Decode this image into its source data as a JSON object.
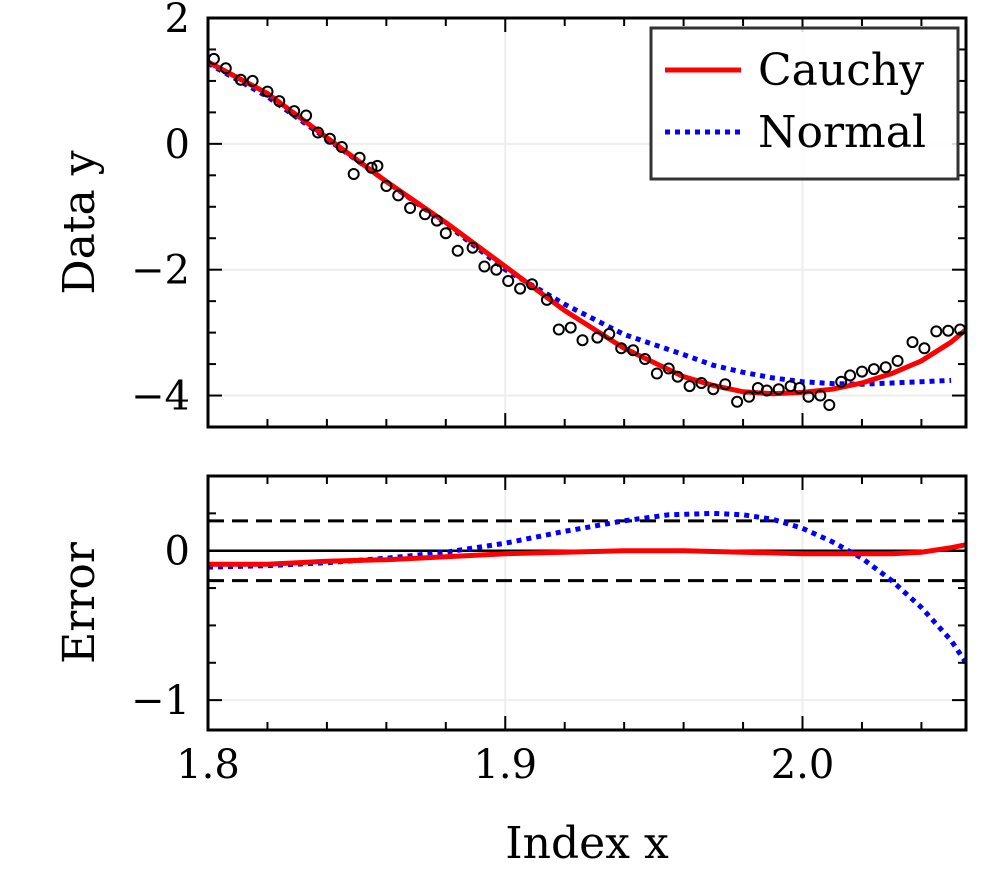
{
  "chart_data": [
    {
      "type": "scatter+line",
      "panel": "top",
      "ylabel": "Data y",
      "xlim": [
        1.8,
        2.055
      ],
      "ylim": [
        -4.5,
        2
      ],
      "yticks": [
        2,
        0,
        -2,
        -4
      ],
      "ytick_labels": [
        "2",
        "0",
        "−2",
        "−4"
      ],
      "grid": true,
      "legend": {
        "position": "top-right",
        "entries": [
          {
            "label": "Cauchy",
            "color": "#ff0000",
            "style": "solid"
          },
          {
            "label": "Normal",
            "color": "#0000ff",
            "style": "dotted"
          }
        ]
      },
      "scatter": {
        "name": "Data",
        "x": [
          1.802,
          1.806,
          1.811,
          1.815,
          1.82,
          1.824,
          1.829,
          1.833,
          1.837,
          1.841,
          1.845,
          1.849,
          1.851,
          1.855,
          1.857,
          1.86,
          1.864,
          1.868,
          1.873,
          1.877,
          1.88,
          1.884,
          1.889,
          1.893,
          1.897,
          1.901,
          1.905,
          1.909,
          1.914,
          1.918,
          1.922,
          1.926,
          1.931,
          1.935,
          1.939,
          1.943,
          1.947,
          1.951,
          1.955,
          1.958,
          1.962,
          1.966,
          1.97,
          1.974,
          1.978,
          1.982,
          1.985,
          1.988,
          1.992,
          1.996,
          1.999,
          2.002,
          2.006,
          2.009,
          2.013,
          2.016,
          2.02,
          2.024,
          2.028,
          2.032,
          2.037,
          2.041,
          2.045,
          2.049,
          2.053
        ],
        "y": [
          1.35,
          1.2,
          1.02,
          1.0,
          0.83,
          0.68,
          0.52,
          0.45,
          0.18,
          0.08,
          -0.05,
          -0.48,
          -0.22,
          -0.38,
          -0.35,
          -0.67,
          -0.82,
          -1.02,
          -1.12,
          -1.22,
          -1.42,
          -1.7,
          -1.65,
          -1.95,
          -2.0,
          -2.18,
          -2.3,
          -2.23,
          -2.48,
          -2.95,
          -2.92,
          -3.12,
          -3.08,
          -3.02,
          -3.25,
          -3.28,
          -3.42,
          -3.65,
          -3.57,
          -3.7,
          -3.85,
          -3.8,
          -3.9,
          -3.82,
          -4.1,
          -4.02,
          -3.88,
          -3.92,
          -3.9,
          -3.85,
          -3.88,
          -4.02,
          -4.0,
          -4.15,
          -3.78,
          -3.68,
          -3.62,
          -3.58,
          -3.55,
          -3.45,
          -3.15,
          -3.25,
          -2.98,
          -2.97,
          -2.95
        ]
      },
      "series": [
        {
          "name": "Cauchy",
          "x": [
            1.8,
            1.82,
            1.84,
            1.86,
            1.88,
            1.9,
            1.92,
            1.94,
            1.96,
            1.97,
            1.98,
            1.99,
            2.0,
            2.01,
            2.02,
            2.03,
            2.04,
            2.05,
            2.055
          ],
          "y": [
            1.3,
            0.8,
            0.1,
            -0.6,
            -1.25,
            -1.95,
            -2.65,
            -3.25,
            -3.7,
            -3.84,
            -3.94,
            -3.97,
            -3.95,
            -3.9,
            -3.8,
            -3.65,
            -3.45,
            -3.15,
            -2.95
          ]
        },
        {
          "name": "Normal",
          "x": [
            1.8,
            1.82,
            1.84,
            1.86,
            1.88,
            1.9,
            1.92,
            1.94,
            1.96,
            1.97,
            1.98,
            1.99,
            2.0,
            2.01,
            2.02,
            2.03,
            2.04,
            2.05
          ],
          "y": [
            1.28,
            0.75,
            0.08,
            -0.6,
            -1.27,
            -2.0,
            -2.55,
            -3.03,
            -3.35,
            -3.52,
            -3.63,
            -3.72,
            -3.78,
            -3.81,
            -3.82,
            -3.8,
            -3.78,
            -3.76
          ]
        }
      ]
    },
    {
      "type": "line",
      "panel": "bottom",
      "xlabel": "Index x",
      "ylabel": "Error",
      "xlim": [
        1.8,
        2.055
      ],
      "ylim": [
        -1.2,
        0.5
      ],
      "xticks": [
        1.8,
        1.9,
        2.0
      ],
      "xtick_labels": [
        "1.8",
        "1.9",
        "2.0"
      ],
      "yticks": [
        0,
        -1
      ],
      "ytick_labels": [
        "0",
        "−1"
      ],
      "grid": true,
      "reference_lines": [
        0.2,
        -0.2
      ],
      "series": [
        {
          "name": "Cauchy",
          "x": [
            1.8,
            1.82,
            1.84,
            1.86,
            1.88,
            1.9,
            1.92,
            1.94,
            1.96,
            1.98,
            2.0,
            2.01,
            2.02,
            2.03,
            2.04,
            2.05,
            2.055
          ],
          "y": [
            -0.09,
            -0.09,
            -0.07,
            -0.06,
            -0.04,
            -0.02,
            -0.01,
            0.0,
            0.0,
            -0.01,
            -0.02,
            -0.02,
            -0.02,
            -0.02,
            -0.01,
            0.02,
            0.04
          ]
        },
        {
          "name": "Normal",
          "x": [
            1.8,
            1.82,
            1.84,
            1.86,
            1.88,
            1.9,
            1.92,
            1.94,
            1.955,
            1.97,
            1.98,
            1.99,
            2.0,
            2.01,
            2.02,
            2.03,
            2.04,
            2.05,
            2.055
          ],
          "y": [
            -0.11,
            -0.1,
            -0.08,
            -0.05,
            -0.01,
            0.05,
            0.13,
            0.2,
            0.24,
            0.25,
            0.24,
            0.21,
            0.15,
            0.06,
            -0.05,
            -0.2,
            -0.38,
            -0.6,
            -0.75
          ]
        }
      ]
    }
  ]
}
